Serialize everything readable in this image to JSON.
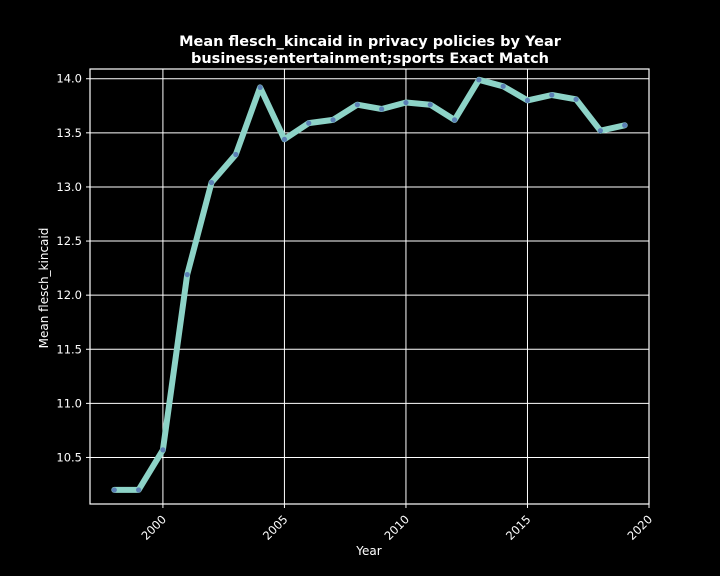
{
  "chart_data": {
    "type": "line",
    "title": "Mean flesch_kincaid in privacy policies by Year",
    "subtitle": "business;entertainment;sports Exact Match",
    "xlabel": "Year",
    "ylabel": "Mean flesch_kincaid",
    "x": [
      1998,
      1999,
      2000,
      2001,
      2002,
      2003,
      2004,
      2005,
      2006,
      2007,
      2008,
      2009,
      2010,
      2011,
      2012,
      2013,
      2014,
      2015,
      2016,
      2017,
      2018,
      2019
    ],
    "values": [
      10.2,
      10.2,
      10.57,
      12.19,
      13.04,
      13.3,
      13.92,
      13.44,
      13.59,
      13.62,
      13.76,
      13.72,
      13.78,
      13.76,
      13.62,
      13.99,
      13.93,
      13.8,
      13.85,
      13.81,
      13.52,
      13.57
    ],
    "xlim": [
      1997.0,
      2020.0
    ],
    "ylim": [
      10.07,
      14.09
    ],
    "xticks": [
      2000,
      2005,
      2010,
      2015,
      2020
    ],
    "yticks": [
      10.5,
      11.0,
      11.5,
      12.0,
      12.5,
      13.0,
      13.5,
      14.0
    ],
    "ytick_labels": [
      "10.5",
      "11.0",
      "11.5",
      "12.0",
      "12.5",
      "13.0",
      "13.5",
      "14.0"
    ],
    "grid": true,
    "colors": {
      "background": "#000000",
      "line": "#8dd3c7",
      "marker": "#5b7fb5",
      "grid": "#ffffff",
      "text": "#ffffff"
    }
  }
}
